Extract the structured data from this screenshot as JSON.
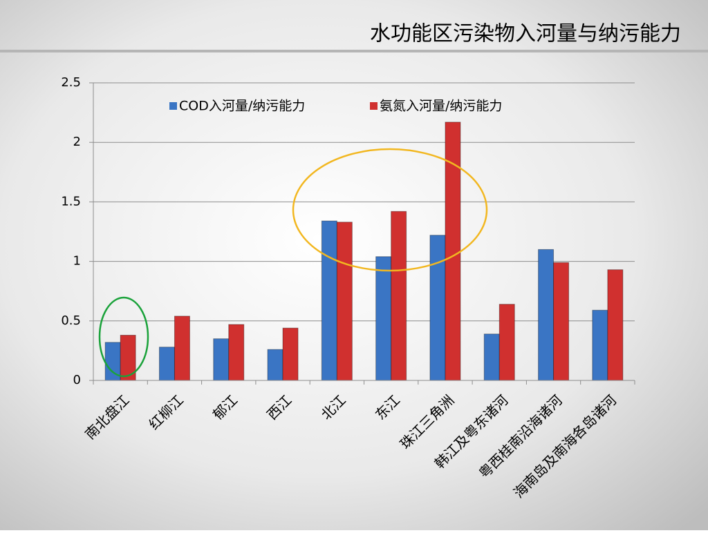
{
  "chart_data": {
    "type": "bar",
    "title": "水功能区污染物入河量与纳污能力",
    "categories": [
      "南北盘江",
      "红柳江",
      "郁江",
      "西江",
      "北江",
      "东江",
      "珠江三角洲",
      "韩江及粤东诸河",
      "粤西桂南沿海诸河",
      "海南岛及南海各岛诸河"
    ],
    "series": [
      {
        "name": "COD入河量/纳污能力",
        "color": "#3a75c4",
        "values": [
          0.32,
          0.28,
          0.35,
          0.26,
          1.34,
          1.04,
          1.22,
          0.39,
          1.1,
          0.59
        ]
      },
      {
        "name": "氨氮入河量/纳污能力",
        "color": "#d0302f",
        "values": [
          0.38,
          0.54,
          0.47,
          0.44,
          1.33,
          1.42,
          2.17,
          0.64,
          0.99,
          0.93
        ]
      }
    ],
    "ylim": [
      0,
      2.5
    ],
    "yticks": [
      0,
      0.5,
      1,
      1.5,
      2,
      2.5
    ],
    "grid": true,
    "legend": "top"
  }
}
